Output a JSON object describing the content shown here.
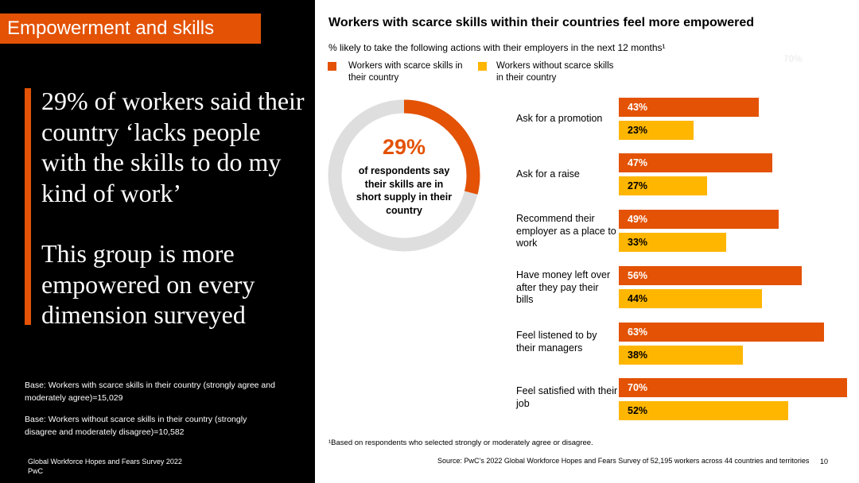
{
  "left_panel": {
    "section_title": "Empowerment and skills",
    "headline_1": "29% of workers said their country ‘lacks people with the skills to do my kind of work’",
    "headline_2": "This group is more empowered on every dimension surveyed",
    "base_1": "Base: Workers with scarce skills in their country (strongly agree and moderately agree)=15,029",
    "base_2": "Base: Workers without scarce skills in their country (strongly disagree and moderately disagree)=10,582",
    "footer_line_1": "Global Workforce Hopes and Fears Survey 2022",
    "footer_line_2": "PwC"
  },
  "ghost_text": "70%",
  "donut": {
    "value": 29,
    "percent_text": "29%",
    "caption": "of respondents say their skills are in short supply in their country",
    "color_fill": "#e35205",
    "color_track": "#dedede"
  },
  "footnote": "¹Based on respondents who selected strongly or moderately agree or disagree.",
  "source": "Source: PwC’s 2022 Global Workforce Hopes and Fears Survey of 52,195 workers across 44 countries and territories",
  "page_number": "10",
  "chart_data": {
    "type": "bar",
    "title": "Workers with scarce skills within their countries feel more empowered",
    "subtitle": "% likely to take the following actions with their employers in the next 12 months¹",
    "categories": [
      "Ask for a promotion",
      "Ask for a raise",
      "Recommend their employer as a place to work",
      "Have money left over after they pay their bills",
      "Feel listened to by their managers",
      "Feel satisfied with their job"
    ],
    "series": [
      {
        "name": "Workers with scarce skills in their country",
        "color": "#e35205",
        "values": [
          43,
          47,
          49,
          56,
          63,
          70
        ],
        "labels": [
          "43%",
          "47%",
          "49%",
          "56%",
          "63%",
          "70%"
        ]
      },
      {
        "name": "Workers without scarce skills in their country",
        "color": "#ffb600",
        "values": [
          23,
          27,
          33,
          44,
          38,
          52
        ],
        "labels": [
          "23%",
          "27%",
          "33%",
          "44%",
          "38%",
          "52%"
        ]
      }
    ],
    "xlim": [
      0,
      70
    ],
    "grid": false,
    "legend": "top"
  }
}
